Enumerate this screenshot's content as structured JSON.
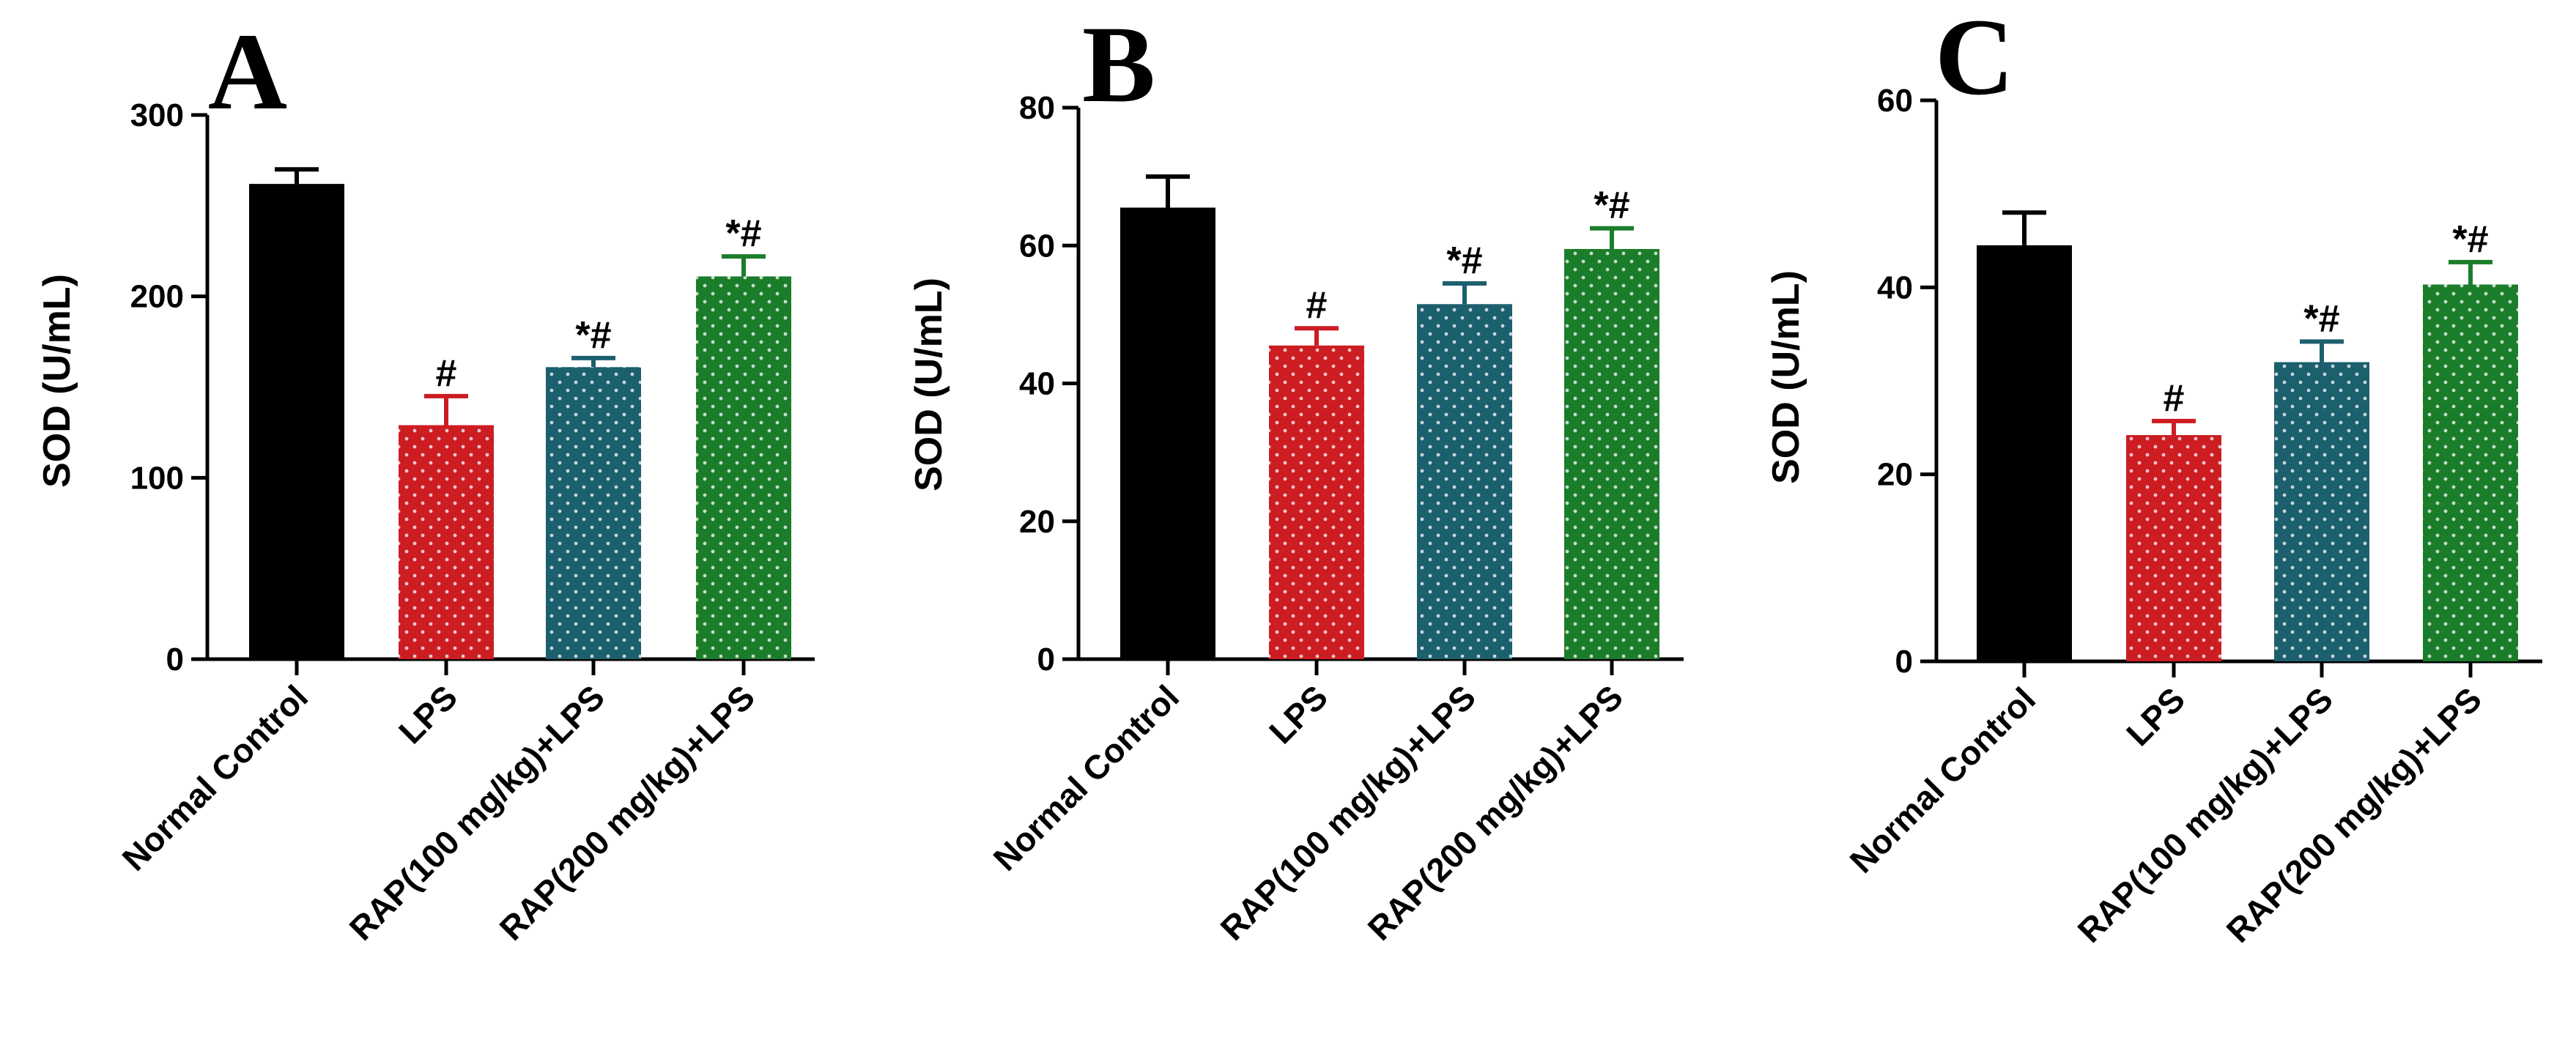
{
  "figure": {
    "colors": {
      "normal_control": "#000000",
      "lps": "#cc1d22",
      "rap100": "#1c5f6e",
      "rap200": "#1b7d2a",
      "axis": "#000000"
    }
  },
  "chart_data": [
    {
      "type": "bar",
      "panel": "A",
      "ylabel": "SOD (U/mL)",
      "ylim": [
        0,
        300
      ],
      "yticks": [
        "0",
        "100",
        "200",
        "300"
      ],
      "categories": [
        "Normal Control",
        "LPS",
        "RAP(100 mg/kg)+LPS",
        "RAP(200 mg/kg)+LPS"
      ],
      "values": [
        262,
        129,
        161,
        211
      ],
      "errors": [
        8,
        16,
        5,
        11
      ],
      "annotations": [
        "",
        "#",
        "*#",
        "*#"
      ]
    },
    {
      "type": "bar",
      "panel": "B",
      "ylabel": "SOD (U/mL)",
      "ylim": [
        0,
        80
      ],
      "yticks": [
        "0",
        "20",
        "40",
        "60",
        "80"
      ],
      "categories": [
        "Normal Control",
        "LPS",
        "RAP(100 mg/kg)+LPS",
        "RAP(200 mg/kg)+LPS"
      ],
      "values": [
        65.5,
        45.5,
        51.5,
        59.5
      ],
      "errors": [
        4.5,
        2.5,
        3.0,
        3.0
      ],
      "annotations": [
        "",
        "#",
        "*#",
        "*#"
      ]
    },
    {
      "type": "bar",
      "panel": "C",
      "ylabel": "SOD (U/mL)",
      "ylim": [
        0,
        60
      ],
      "yticks": [
        "0",
        "20",
        "40",
        "60"
      ],
      "categories": [
        "Normal Control",
        "LPS",
        "RAP(100 mg/kg)+LPS",
        "RAP(200 mg/kg)+LPS"
      ],
      "values": [
        44.5,
        24.2,
        32.0,
        40.3
      ],
      "errors": [
        3.5,
        1.5,
        2.2,
        2.4
      ],
      "annotations": [
        "",
        "#",
        "*#",
        "*#"
      ]
    }
  ]
}
